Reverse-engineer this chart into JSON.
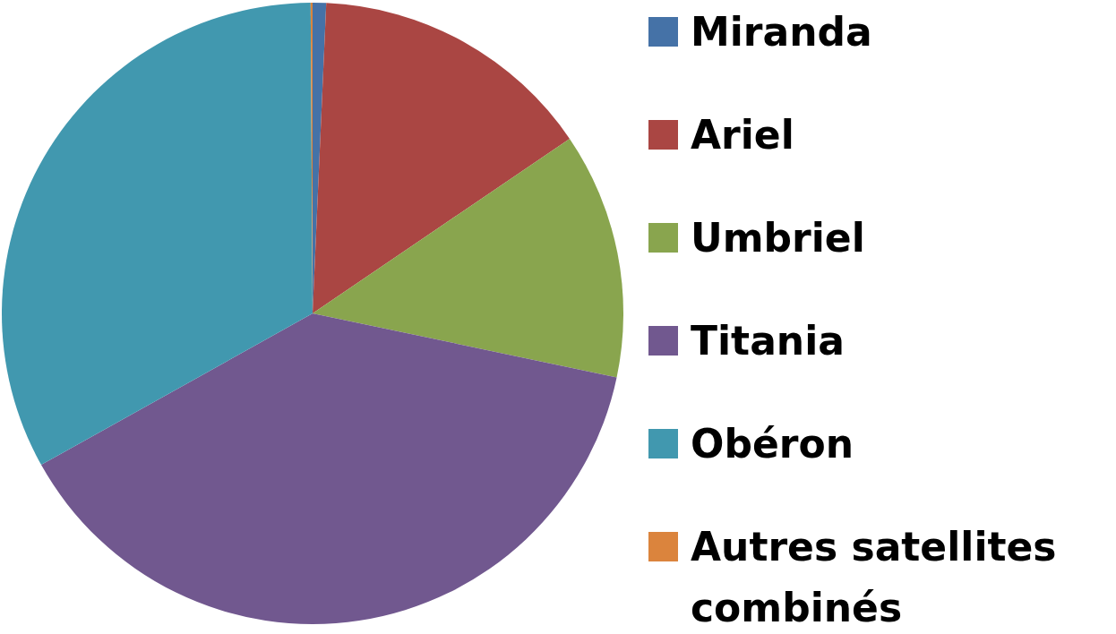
{
  "chart_data": {
    "type": "pie",
    "categories": [
      "Miranda",
      "Ariel",
      "Umbriel",
      "Titania",
      "Obéron",
      "Autres satellites combinés"
    ],
    "values": [
      0.7,
      14.8,
      12.8,
      38.6,
      33.0,
      0.1
    ],
    "colors": [
      "#4572a7",
      "#aa4643",
      "#89a54e",
      "#71588f",
      "#4198af",
      "#db843d"
    ],
    "legend": "right"
  }
}
